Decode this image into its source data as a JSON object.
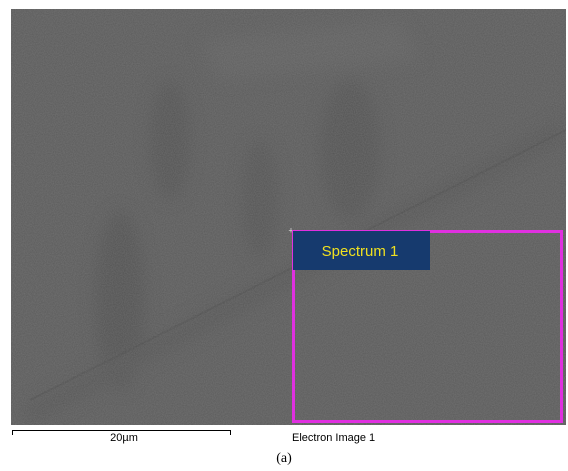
{
  "image": {
    "region_label": "Spectrum 1",
    "scale_bar_label": "20µm",
    "image_title": "Electron Image 1"
  },
  "caption": "(a)"
}
